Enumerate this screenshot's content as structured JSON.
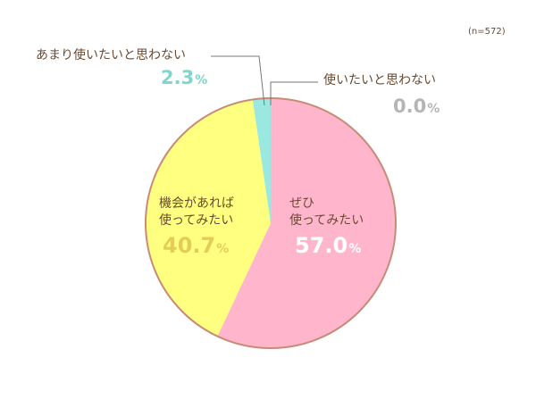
{
  "chart_data": {
    "type": "pie",
    "note": "(n=572)",
    "slices": [
      {
        "label": "ぜひ使ってみたい",
        "value": 57.0,
        "display": "57.0",
        "color": "#ffb6cc"
      },
      {
        "label": "機会があれば使ってみたい",
        "value": 40.7,
        "display": "40.7",
        "color": "#ffff80"
      },
      {
        "label": "あまり使いたいと思わない",
        "value": 2.3,
        "display": "2.3",
        "color": "#9ae8e0"
      },
      {
        "label": "使いたいと思わない",
        "value": 0.0,
        "display": "0.0",
        "color": "#ffffff"
      }
    ],
    "percent_symbol": "%",
    "label_lines": {
      "s0": [
        "ぜひ",
        "使ってみたい"
      ],
      "s1": [
        "機会があれば",
        "使ってみたい"
      ]
    },
    "colors": {
      "border": "#c88b77",
      "label_text": "#6b4a32",
      "pct_inner_pink": "#ffffff",
      "pct_inner_yellow": "#e4cc5a",
      "pct_teal": "#7fd6cc",
      "pct_gray": "#b5b5b5"
    }
  }
}
